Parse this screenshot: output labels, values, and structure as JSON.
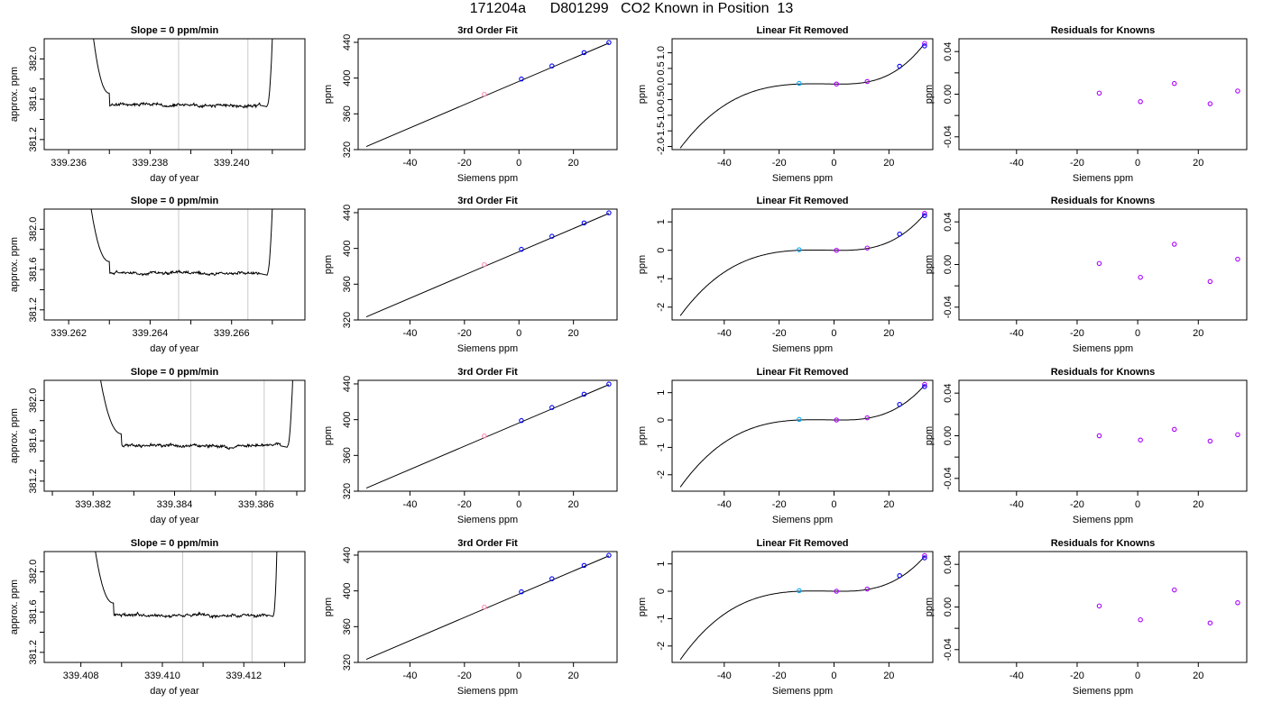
{
  "page": {
    "title": "171204a      D801299   CO2 Known in Position  13"
  },
  "colors": {
    "axis": "#000000",
    "trace": "#000000",
    "gridline": "#c8c8c8",
    "points_blue": "#0000ff",
    "points_cyan": "#00aaff",
    "points_violet": "#aa00ff",
    "points_pink": "#ff88aa"
  },
  "chart_data": [
    {
      "type": "line",
      "row": 0,
      "col": 0,
      "title": "Slope =  0  ppm/min",
      "xlabel": "day of year",
      "ylabel": "approx. ppm",
      "xlim": [
        339.2354,
        339.2418
      ],
      "ylim": [
        381.1,
        382.2
      ],
      "xticks": [
        339.236,
        339.238,
        339.24
      ],
      "xtick_labels": [
        "339.236",
        "339.238",
        "339.240"
      ],
      "xminor_ticks": [
        339.237,
        339.239,
        339.241
      ],
      "yticks": [
        381.2,
        381.6,
        382.0
      ],
      "ytick_labels": [
        "381.2",
        "381.6",
        "382.0"
      ],
      "yminor_ticks": [
        381.4,
        381.8
      ],
      "vlines": [
        339.2387,
        339.2404
      ],
      "trace": {
        "x_start": 339.2364,
        "x_rise": 339.237,
        "x_fall": 339.2407,
        "x_end": 339.24105,
        "level": 381.54,
        "seed": 3
      }
    },
    {
      "type": "scatter",
      "row": 0,
      "col": 1,
      "title": "3rd Order Fit",
      "xlabel": "Siemens ppm",
      "ylabel": "ppm",
      "xlim": [
        -59,
        36
      ],
      "ylim": [
        320,
        444
      ],
      "xticks": [
        -40,
        -20,
        0,
        20
      ],
      "xtick_labels": [
        "-40",
        "-20",
        "0",
        "20"
      ],
      "yticks": [
        320,
        360,
        400,
        440
      ],
      "ytick_labels": [
        "320",
        "360",
        "400",
        "440"
      ],
      "line": {
        "x": [
          -56,
          33
        ],
        "y": [
          323.5,
          439.2
        ]
      },
      "points": [
        {
          "x": -12.7,
          "y": 381.8,
          "color": "pink"
        },
        {
          "x": 0.9,
          "y": 399.0,
          "color": "blue"
        },
        {
          "x": 12.1,
          "y": 413.6,
          "color": "blue"
        },
        {
          "x": 23.9,
          "y": 428.5,
          "color": "blue"
        },
        {
          "x": 33.0,
          "y": 439.8,
          "color": "blue"
        }
      ]
    },
    {
      "type": "line",
      "row": 0,
      "col": 2,
      "title": "Linear Fit Removed",
      "xlabel": "Siemens ppm",
      "ylabel": "ppm",
      "xlim": [
        -59,
        36
      ],
      "ylim": [
        -2.1,
        1.45
      ],
      "xticks": [
        -40,
        -20,
        0,
        20
      ],
      "xtick_labels": [
        "-40",
        "-20",
        "0",
        "20"
      ],
      "yticks": [
        -2.0,
        -1.5,
        -1.0,
        -0.5,
        0.0,
        0.5,
        1.0
      ],
      "ytick_labels": [
        "-2.0",
        "-1.5",
        "-1.0",
        "-0.5",
        "0.0",
        "0.5",
        "1.0"
      ],
      "curve": {
        "x_from": -56,
        "x_to": 33,
        "y_at_min": -2.05,
        "y_at_max": 1.3
      },
      "points": [
        {
          "x": -12.7,
          "y": 0.02,
          "color": "cyan"
        },
        {
          "x": 0.9,
          "y": 0.0,
          "color": "violet"
        },
        {
          "x": 12.1,
          "y": 0.08,
          "color": "violet"
        },
        {
          "x": 23.9,
          "y": 0.57,
          "color": "blue"
        },
        {
          "x": 33.0,
          "y": 1.3,
          "color": "violet"
        },
        {
          "x": 33.0,
          "y": 1.22,
          "color": "blue"
        }
      ]
    },
    {
      "type": "scatter",
      "row": 0,
      "col": 3,
      "title": "Residuals for Knowns",
      "xlabel": "Siemens ppm",
      "ylabel": "ppm",
      "xlim": [
        -59,
        36
      ],
      "ylim": [
        -0.052,
        0.052
      ],
      "xticks": [
        -40,
        -20,
        0,
        20
      ],
      "xtick_labels": [
        "-40",
        "-20",
        "0",
        "20"
      ],
      "yticks": [
        -0.04,
        0.0,
        0.04
      ],
      "ytick_labels": [
        "-0.04",
        "0.00",
        "0.04"
      ],
      "yminor_ticks": [
        -0.02,
        0.02
      ],
      "points": [
        {
          "x": -12.7,
          "y": 0.001,
          "color": "violet"
        },
        {
          "x": 0.9,
          "y": -0.007,
          "color": "violet"
        },
        {
          "x": 12.1,
          "y": 0.01,
          "color": "violet"
        },
        {
          "x": 23.9,
          "y": -0.009,
          "color": "violet"
        },
        {
          "x": 33.0,
          "y": 0.003,
          "color": "violet"
        }
      ]
    },
    {
      "type": "line",
      "row": 1,
      "col": 0,
      "title": "Slope =  0  ppm/min",
      "xlabel": "day of year",
      "ylabel": "approx. ppm",
      "xlim": [
        339.2614,
        339.2678
      ],
      "ylim": [
        381.1,
        382.2
      ],
      "xticks": [
        339.262,
        339.264,
        339.266
      ],
      "xtick_labels": [
        "339.262",
        "339.264",
        "339.266"
      ],
      "xminor_ticks": [
        339.263,
        339.265,
        339.267
      ],
      "yticks": [
        381.2,
        381.6,
        382.0
      ],
      "ytick_labels": [
        "381.2",
        "381.6",
        "382.0"
      ],
      "yminor_ticks": [
        381.4,
        381.8
      ],
      "vlines": [
        339.2647,
        339.2664
      ],
      "trace": {
        "x_start": 339.2623,
        "x_rise": 339.263,
        "x_fall": 339.2667,
        "x_end": 339.26705,
        "level": 381.56,
        "seed": 7
      }
    },
    {
      "type": "scatter",
      "row": 1,
      "col": 1,
      "title": "3rd Order Fit",
      "xlabel": "Siemens ppm",
      "ylabel": "ppm",
      "xlim": [
        -59,
        36
      ],
      "ylim": [
        320,
        444
      ],
      "xticks": [
        -40,
        -20,
        0,
        20
      ],
      "xtick_labels": [
        "-40",
        "-20",
        "0",
        "20"
      ],
      "yticks": [
        320,
        360,
        400,
        440
      ],
      "ytick_labels": [
        "320",
        "360",
        "400",
        "440"
      ],
      "line": {
        "x": [
          -56,
          33
        ],
        "y": [
          323.5,
          439.2
        ]
      },
      "points": [
        {
          "x": -12.7,
          "y": 381.8,
          "color": "pink"
        },
        {
          "x": 0.9,
          "y": 399.0,
          "color": "blue"
        },
        {
          "x": 12.1,
          "y": 413.6,
          "color": "blue"
        },
        {
          "x": 23.9,
          "y": 428.5,
          "color": "blue"
        },
        {
          "x": 33.0,
          "y": 439.8,
          "color": "blue"
        }
      ]
    },
    {
      "type": "line",
      "row": 1,
      "col": 2,
      "title": "Linear Fit Removed",
      "xlabel": "Siemens ppm",
      "ylabel": "ppm",
      "xlim": [
        -59,
        36
      ],
      "ylim": [
        -2.45,
        1.45
      ],
      "xticks": [
        -40,
        -20,
        0,
        20
      ],
      "xtick_labels": [
        "-40",
        "-20",
        "0",
        "20"
      ],
      "yticks": [
        -2,
        -1,
        0,
        1
      ],
      "ytick_labels": [
        "-2",
        "-1",
        "0",
        "1"
      ],
      "curve": {
        "x_from": -56,
        "x_to": 33,
        "y_at_min": -2.3,
        "y_at_max": 1.27
      },
      "points": [
        {
          "x": -12.7,
          "y": 0.02,
          "color": "cyan"
        },
        {
          "x": 0.9,
          "y": 0.0,
          "color": "violet"
        },
        {
          "x": 12.1,
          "y": 0.08,
          "color": "violet"
        },
        {
          "x": 23.9,
          "y": 0.57,
          "color": "blue"
        },
        {
          "x": 33.0,
          "y": 1.3,
          "color": "violet"
        },
        {
          "x": 33.0,
          "y": 1.22,
          "color": "blue"
        }
      ]
    },
    {
      "type": "scatter",
      "row": 1,
      "col": 3,
      "title": "Residuals for Knowns",
      "xlabel": "Siemens ppm",
      "ylabel": "ppm",
      "xlim": [
        -59,
        36
      ],
      "ylim": [
        -0.052,
        0.052
      ],
      "xticks": [
        -40,
        -20,
        0,
        20
      ],
      "xtick_labels": [
        "-40",
        "-20",
        "0",
        "20"
      ],
      "yticks": [
        -0.04,
        0.0,
        0.04
      ],
      "ytick_labels": [
        "-0.04",
        "0.00",
        "0.04"
      ],
      "yminor_ticks": [
        -0.02,
        0.02
      ],
      "points": [
        {
          "x": -12.7,
          "y": 0.001,
          "color": "violet"
        },
        {
          "x": 0.9,
          "y": -0.012,
          "color": "violet"
        },
        {
          "x": 12.1,
          "y": 0.019,
          "color": "violet"
        },
        {
          "x": 23.9,
          "y": -0.016,
          "color": "violet"
        },
        {
          "x": 33.0,
          "y": 0.005,
          "color": "violet"
        }
      ]
    },
    {
      "type": "line",
      "row": 2,
      "col": 0,
      "title": "Slope =  0  ppm/min",
      "xlabel": "day of year",
      "ylabel": "approx. ppm",
      "xlim": [
        339.3808,
        339.3872
      ],
      "ylim": [
        381.1,
        382.2
      ],
      "xticks": [
        339.382,
        339.384,
        339.386
      ],
      "xtick_labels": [
        "339.382",
        "339.384",
        "339.386"
      ],
      "xminor_ticks": [
        339.381,
        339.383,
        339.385,
        339.387
      ],
      "yticks": [
        381.2,
        381.6,
        382.0
      ],
      "ytick_labels": [
        "381.2",
        "381.6",
        "382.0"
      ],
      "yminor_ticks": [
        381.4,
        381.8
      ],
      "vlines": [
        339.3844,
        339.3862
      ],
      "trace": {
        "x_start": 339.3819,
        "x_rise": 339.3827,
        "x_fall": 339.3866,
        "x_end": 339.38695,
        "level": 381.55,
        "seed": 11
      }
    },
    {
      "type": "scatter",
      "row": 2,
      "col": 1,
      "title": "3rd Order Fit",
      "xlabel": "Siemens ppm",
      "ylabel": "ppm",
      "xlim": [
        -59,
        36
      ],
      "ylim": [
        320,
        444
      ],
      "xticks": [
        -40,
        -20,
        0,
        20
      ],
      "xtick_labels": [
        "-40",
        "-20",
        "0",
        "20"
      ],
      "yticks": [
        320,
        360,
        400,
        440
      ],
      "ytick_labels": [
        "320",
        "360",
        "400",
        "440"
      ],
      "line": {
        "x": [
          -56,
          33
        ],
        "y": [
          323.5,
          439.2
        ]
      },
      "points": [
        {
          "x": -12.7,
          "y": 381.8,
          "color": "pink"
        },
        {
          "x": 0.9,
          "y": 399.0,
          "color": "blue"
        },
        {
          "x": 12.1,
          "y": 413.6,
          "color": "blue"
        },
        {
          "x": 23.9,
          "y": 428.5,
          "color": "blue"
        },
        {
          "x": 33.0,
          "y": 439.8,
          "color": "blue"
        }
      ]
    },
    {
      "type": "line",
      "row": 2,
      "col": 2,
      "title": "Linear Fit Removed",
      "xlabel": "Siemens ppm",
      "ylabel": "ppm",
      "xlim": [
        -59,
        36
      ],
      "ylim": [
        -2.6,
        1.45
      ],
      "xticks": [
        -40,
        -20,
        0,
        20
      ],
      "xtick_labels": [
        "-40",
        "-20",
        "0",
        "20"
      ],
      "yticks": [
        -2,
        -1,
        0,
        1
      ],
      "ytick_labels": [
        "-2",
        "-1",
        "0",
        "1"
      ],
      "curve": {
        "x_from": -56,
        "x_to": 33,
        "y_at_min": -2.45,
        "y_at_max": 1.27
      },
      "points": [
        {
          "x": -12.7,
          "y": 0.02,
          "color": "cyan"
        },
        {
          "x": 0.9,
          "y": 0.0,
          "color": "violet"
        },
        {
          "x": 12.1,
          "y": 0.08,
          "color": "violet"
        },
        {
          "x": 23.9,
          "y": 0.57,
          "color": "blue"
        },
        {
          "x": 33.0,
          "y": 1.3,
          "color": "violet"
        },
        {
          "x": 33.0,
          "y": 1.22,
          "color": "blue"
        }
      ]
    },
    {
      "type": "scatter",
      "row": 2,
      "col": 3,
      "title": "Residuals for Knowns",
      "xlabel": "Siemens ppm",
      "ylabel": "ppm",
      "xlim": [
        -59,
        36
      ],
      "ylim": [
        -0.052,
        0.052
      ],
      "xticks": [
        -40,
        -20,
        0,
        20
      ],
      "xtick_labels": [
        "-40",
        "-20",
        "0",
        "20"
      ],
      "yticks": [
        -0.04,
        0.0,
        0.04
      ],
      "ytick_labels": [
        "-0.04",
        "0.00",
        "0.04"
      ],
      "yminor_ticks": [
        -0.02,
        0.02
      ],
      "points": [
        {
          "x": -12.7,
          "y": 0.0,
          "color": "violet"
        },
        {
          "x": 0.9,
          "y": -0.004,
          "color": "violet"
        },
        {
          "x": 12.1,
          "y": 0.006,
          "color": "violet"
        },
        {
          "x": 23.9,
          "y": -0.005,
          "color": "violet"
        },
        {
          "x": 33.0,
          "y": 0.001,
          "color": "violet"
        }
      ]
    },
    {
      "type": "line",
      "row": 3,
      "col": 0,
      "title": "Slope =  0  ppm/min",
      "xlabel": "day of year",
      "ylabel": "approx. ppm",
      "xlim": [
        339.4071,
        339.4135
      ],
      "ylim": [
        381.1,
        382.2
      ],
      "xticks": [
        339.408,
        339.41,
        339.412
      ],
      "xtick_labels": [
        "339.408",
        "339.410",
        "339.412"
      ],
      "xminor_ticks": [
        339.409,
        339.411,
        339.413
      ],
      "yticks": [
        381.2,
        381.6,
        382.0
      ],
      "ytick_labels": [
        "381.2",
        "381.6",
        "382.0"
      ],
      "yminor_ticks": [
        381.4,
        381.8
      ],
      "vlines": [
        339.4105,
        339.4122
      ],
      "trace": {
        "x_start": 339.4081,
        "x_rise": 339.4088,
        "x_fall": 339.4126,
        "x_end": 339.41285,
        "level": 381.57,
        "seed": 19
      }
    },
    {
      "type": "scatter",
      "row": 3,
      "col": 1,
      "title": "3rd Order Fit",
      "xlabel": "Siemens ppm",
      "ylabel": "ppm",
      "xlim": [
        -59,
        36
      ],
      "ylim": [
        320,
        444
      ],
      "xticks": [
        -40,
        -20,
        0,
        20
      ],
      "xtick_labels": [
        "-40",
        "-20",
        "0",
        "20"
      ],
      "yticks": [
        320,
        360,
        400,
        440
      ],
      "ytick_labels": [
        "320",
        "360",
        "400",
        "440"
      ],
      "line": {
        "x": [
          -56,
          33
        ],
        "y": [
          323.5,
          439.2
        ]
      },
      "points": [
        {
          "x": -12.7,
          "y": 381.8,
          "color": "pink"
        },
        {
          "x": 0.9,
          "y": 399.0,
          "color": "blue"
        },
        {
          "x": 12.1,
          "y": 413.6,
          "color": "blue"
        },
        {
          "x": 23.9,
          "y": 428.5,
          "color": "blue"
        },
        {
          "x": 33.0,
          "y": 439.8,
          "color": "blue"
        }
      ]
    },
    {
      "type": "line",
      "row": 3,
      "col": 2,
      "title": "Linear Fit Removed",
      "xlabel": "Siemens ppm",
      "ylabel": "ppm",
      "xlim": [
        -59,
        36
      ],
      "ylim": [
        -2.6,
        1.45
      ],
      "xticks": [
        -40,
        -20,
        0,
        20
      ],
      "xtick_labels": [
        "-40",
        "-20",
        "0",
        "20"
      ],
      "yticks": [
        -2,
        -1,
        0,
        1
      ],
      "ytick_labels": [
        "-2",
        "-1",
        "0",
        "1"
      ],
      "curve": {
        "x_from": -56,
        "x_to": 33,
        "y_at_min": -2.5,
        "y_at_max": 1.27
      },
      "points": [
        {
          "x": -12.7,
          "y": 0.02,
          "color": "cyan"
        },
        {
          "x": 0.9,
          "y": 0.0,
          "color": "violet"
        },
        {
          "x": 12.1,
          "y": 0.08,
          "color": "violet"
        },
        {
          "x": 23.9,
          "y": 0.57,
          "color": "blue"
        },
        {
          "x": 33.0,
          "y": 1.3,
          "color": "violet"
        },
        {
          "x": 33.0,
          "y": 1.22,
          "color": "blue"
        }
      ]
    },
    {
      "type": "scatter",
      "row": 3,
      "col": 3,
      "title": "Residuals for Knowns",
      "xlabel": "Siemens ppm",
      "ylabel": "ppm",
      "xlim": [
        -59,
        36
      ],
      "ylim": [
        -0.052,
        0.052
      ],
      "xticks": [
        -40,
        -20,
        0,
        20
      ],
      "xtick_labels": [
        "-40",
        "-20",
        "0",
        "20"
      ],
      "yticks": [
        -0.04,
        0.0,
        0.04
      ],
      "ytick_labels": [
        "-0.04",
        "0.00",
        "0.04"
      ],
      "yminor_ticks": [
        -0.02,
        0.02
      ],
      "points": [
        {
          "x": -12.7,
          "y": 0.001,
          "color": "violet"
        },
        {
          "x": 0.9,
          "y": -0.012,
          "color": "violet"
        },
        {
          "x": 12.1,
          "y": 0.016,
          "color": "violet"
        },
        {
          "x": 23.9,
          "y": -0.015,
          "color": "violet"
        },
        {
          "x": 33.0,
          "y": 0.004,
          "color": "violet"
        }
      ]
    }
  ]
}
